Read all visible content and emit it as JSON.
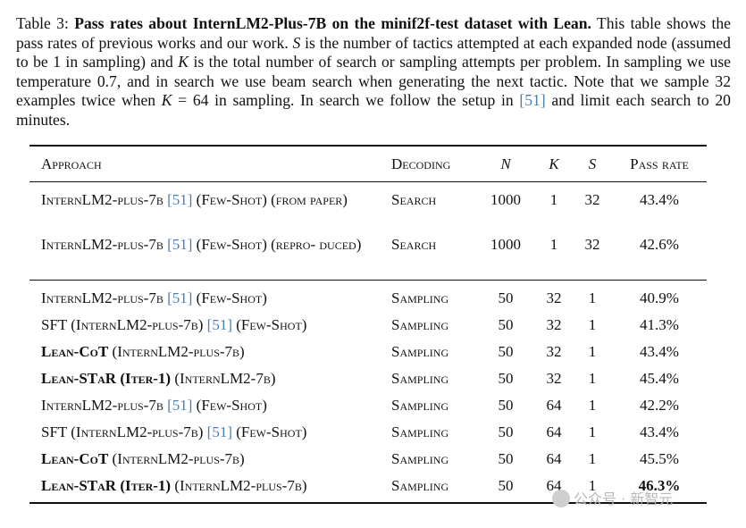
{
  "caption": {
    "label": "Table 3:",
    "title": "Pass rates about InternLM2-Plus-7B on the minif2f-test dataset with Lean.",
    "text_1": "This table shows the pass rates of previous works and our work.",
    "var_s": "S",
    "text_2": "is the number of tactics attempted at each expanded node (assumed to be 1 in sampling) and",
    "var_k": "K",
    "text_3": "is the total number of search or sampling attempts per problem. In sampling we use temperature 0.7, and in search we use beam search when generating the next tactic. Note that we sample 32 examples twice when",
    "var_k2": "K",
    "eq_k": "= 64",
    "text_4": "in sampling. In search we follow the setup in",
    "cite": "[51]",
    "text_5": "and limit each search to 20 minutes."
  },
  "table": {
    "headers": {
      "approach": "Approach",
      "decoding": "Decoding",
      "n": "N",
      "k": "K",
      "s": "S",
      "rate": "Pass rate"
    },
    "rows": [
      {
        "pre": "",
        "bold": "",
        "model": "InternLM2-plus-7b",
        "cite": "[51]",
        "post": "(Few-Shot) (from paper)",
        "decoding": "Search",
        "n": "1000",
        "k": "1",
        "s": "32",
        "rate": "43.4%"
      },
      {
        "pre": "",
        "bold": "",
        "model": "InternLM2-plus-7b",
        "cite": "[51]",
        "post": "(Few-Shot) (repro- duced)",
        "decoding": "Search",
        "n": "1000",
        "k": "1",
        "s": "32",
        "rate": "42.6%"
      },
      {
        "pre": "",
        "bold": "",
        "model": "InternLM2-plus-7b",
        "cite": "[51]",
        "post": "(Few-Shot)",
        "decoding": "Sampling",
        "n": "50",
        "k": "32",
        "s": "1",
        "rate": "40.9%"
      },
      {
        "pre": "SFT (",
        "bold": "",
        "model": "InternLM2-plus-7b)",
        "cite": "[51]",
        "post": "(Few-Shot)",
        "decoding": "Sampling",
        "n": "50",
        "k": "32",
        "s": "1",
        "rate": "41.3%"
      },
      {
        "pre": "",
        "bold": "Lean-CoT",
        "model": "(InternLM2-plus-7b)",
        "cite": "",
        "post": "",
        "decoding": "Sampling",
        "n": "50",
        "k": "32",
        "s": "1",
        "rate": "43.4%"
      },
      {
        "pre": "",
        "bold": "Lean-STaR (Iter-1)",
        "model": "(InternLM2-7b)",
        "cite": "",
        "post": "",
        "decoding": "Sampling",
        "n": "50",
        "k": "32",
        "s": "1",
        "rate": "45.4%"
      },
      {
        "pre": "",
        "bold": "",
        "model": "InternLM2-plus-7b",
        "cite": "[51]",
        "post": "(Few-Shot)",
        "decoding": "Sampling",
        "n": "50",
        "k": "64",
        "s": "1",
        "rate": "42.2%"
      },
      {
        "pre": "SFT (",
        "bold": "",
        "model": "InternLM2-plus-7b)",
        "cite": "[51]",
        "post": "(Few-Shot)",
        "decoding": "Sampling",
        "n": "50",
        "k": "64",
        "s": "1",
        "rate": "43.4%"
      },
      {
        "pre": "",
        "bold": "Lean-CoT",
        "model": "(InternLM2-plus-7b)",
        "cite": "",
        "post": "",
        "decoding": "Sampling",
        "n": "50",
        "k": "64",
        "s": "1",
        "rate": "45.5%"
      },
      {
        "pre": "",
        "bold": "Lean-STaR (Iter-1)",
        "model": "(InternLM2-plus-7b)",
        "cite": "",
        "post": "",
        "decoding": "Sampling",
        "n": "50",
        "k": "64",
        "s": "1",
        "rate": "46.3%",
        "rate_bold": true
      }
    ]
  },
  "watermark": {
    "text": "公众号 · 新智元"
  }
}
